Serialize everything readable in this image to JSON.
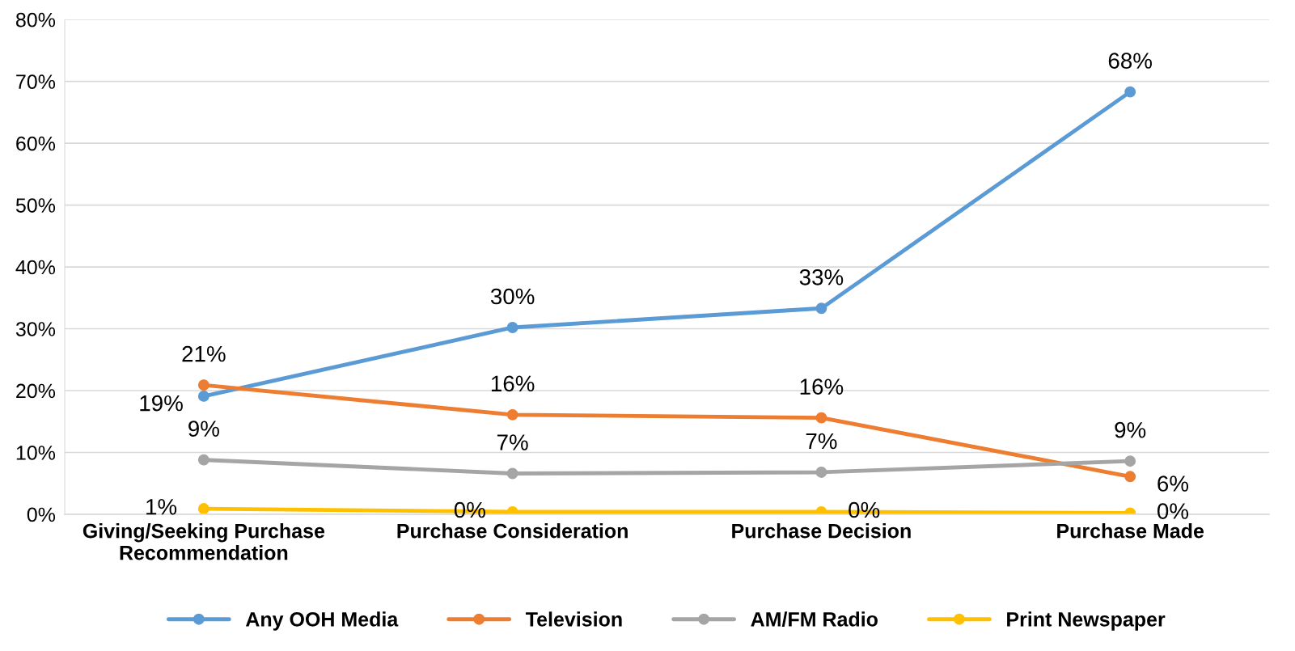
{
  "chart_data": {
    "type": "line",
    "categories": [
      "Giving/Seeking Purchase\nRecommendation",
      "Purchase Consideration",
      "Purchase Decision",
      "Purchase Made"
    ],
    "series": [
      {
        "name": "Any OOH Media",
        "color": "#5b9bd5",
        "values": [
          19.1,
          30.2,
          33.3,
          68.3
        ],
        "value_labels": [
          "19%",
          "30%",
          "33%",
          "68%"
        ]
      },
      {
        "name": "Television",
        "color": "#ed7d31",
        "values": [
          20.9,
          16.1,
          15.6,
          6.1
        ],
        "value_labels": [
          "21%",
          "16%",
          "16%",
          "6%"
        ]
      },
      {
        "name": "AM/FM Radio",
        "color": "#a5a5a5",
        "values": [
          8.8,
          6.6,
          6.8,
          8.6
        ],
        "value_labels": [
          "9%",
          "7%",
          "7%",
          "9%"
        ]
      },
      {
        "name": "Print Newspaper",
        "color": "#ffc000",
        "values": [
          0.9,
          0.4,
          0.4,
          0.2
        ],
        "value_labels": [
          "1%",
          "0%",
          "0%",
          "0%"
        ]
      }
    ],
    "ylim": [
      0,
      80
    ],
    "yticks": [
      {
        "value": 0,
        "label": "0%"
      },
      {
        "value": 10,
        "label": "10%"
      },
      {
        "value": 20,
        "label": "20%"
      },
      {
        "value": 30,
        "label": "30%"
      },
      {
        "value": 40,
        "label": "40%"
      },
      {
        "value": 50,
        "label": "50%"
      },
      {
        "value": 60,
        "label": "60%"
      },
      {
        "value": 70,
        "label": "70%"
      },
      {
        "value": 80,
        "label": "80%"
      }
    ],
    "grid": "y",
    "legend": "bottom",
    "marker": "circle",
    "line_style": "solid"
  }
}
